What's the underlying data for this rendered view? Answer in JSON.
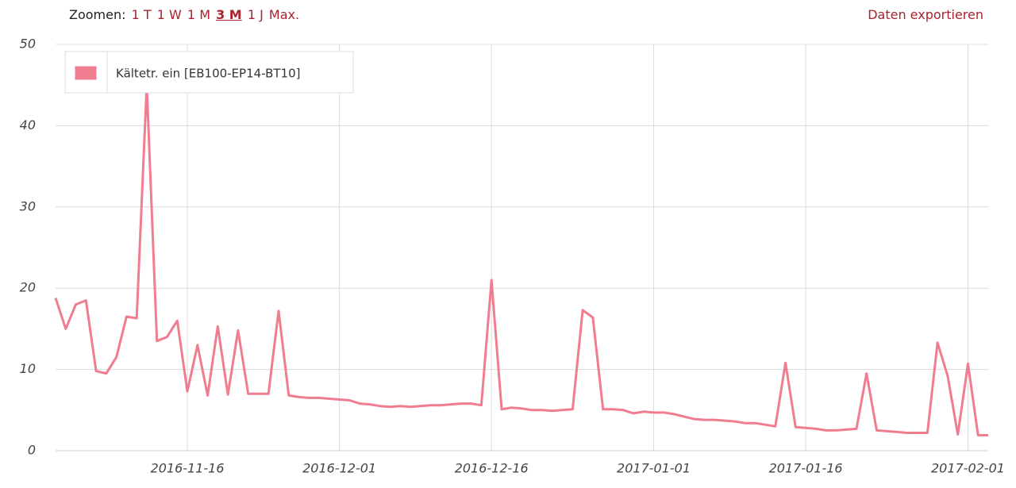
{
  "ui": {
    "zoom_label": "Zoomen:",
    "zoom_options": [
      "1 T",
      "1 W",
      "1 M",
      "3 M",
      "1 J",
      "Max."
    ],
    "active_zoom": 3,
    "export": "Daten exportieren"
  },
  "chart_data": {
    "type": "line",
    "x": [
      "2016-11-03",
      "2016-11-04",
      "2016-11-05",
      "2016-11-06",
      "2016-11-07",
      "2016-11-08",
      "2016-11-09",
      "2016-11-10",
      "2016-11-11",
      "2016-11-12",
      "2016-11-13",
      "2016-11-14",
      "2016-11-15",
      "2016-11-16",
      "2016-11-17",
      "2016-11-18",
      "2016-11-19",
      "2016-11-20",
      "2016-11-21",
      "2016-11-22",
      "2016-11-23",
      "2016-11-24",
      "2016-11-25",
      "2016-11-26",
      "2016-11-27",
      "2016-11-28",
      "2016-11-29",
      "2016-11-30",
      "2016-12-01",
      "2016-12-02",
      "2016-12-03",
      "2016-12-04",
      "2016-12-05",
      "2016-12-06",
      "2016-12-07",
      "2016-12-08",
      "2016-12-09",
      "2016-12-10",
      "2016-12-11",
      "2016-12-12",
      "2016-12-13",
      "2016-12-14",
      "2016-12-15",
      "2016-12-16",
      "2016-12-17",
      "2016-12-18",
      "2016-12-19",
      "2016-12-20",
      "2016-12-21",
      "2016-12-22",
      "2016-12-23",
      "2016-12-24",
      "2016-12-25",
      "2016-12-26",
      "2016-12-27",
      "2016-12-28",
      "2016-12-29",
      "2016-12-30",
      "2016-12-31",
      "2017-01-01",
      "2017-01-02",
      "2017-01-03",
      "2017-01-04",
      "2017-01-05",
      "2017-01-06",
      "2017-01-07",
      "2017-01-08",
      "2017-01-09",
      "2017-01-10",
      "2017-01-11",
      "2017-01-12",
      "2017-01-13",
      "2017-01-14",
      "2017-01-15",
      "2017-01-16",
      "2017-01-17",
      "2017-01-18",
      "2017-01-19",
      "2017-01-20",
      "2017-01-21",
      "2017-01-22",
      "2017-01-23",
      "2017-01-24",
      "2017-01-25",
      "2017-01-26",
      "2017-01-27",
      "2017-01-28",
      "2017-01-29",
      "2017-01-30",
      "2017-01-31",
      "2017-02-01",
      "2017-02-02",
      "2017-02-03"
    ],
    "series": [
      {
        "name": "Kältetr. ein [EB100-EP14-BT10]",
        "color": "#f07c8f",
        "values": [
          18.8,
          15,
          18,
          18.5,
          9.8,
          9.5,
          11.5,
          16.5,
          16.3,
          45,
          13.5,
          14,
          16,
          7.3,
          13,
          6.8,
          15.3,
          6.9,
          14.8,
          7,
          7,
          7,
          17.2,
          6.8,
          6.6,
          6.5,
          6.5,
          6.4,
          6.3,
          6.2,
          5.8,
          5.7,
          5.5,
          5.4,
          5.5,
          5.4,
          5.5,
          5.6,
          5.6,
          5.7,
          5.8,
          5.8,
          5.6,
          21,
          5.1,
          5.3,
          5.2,
          5,
          5,
          4.9,
          5,
          5.1,
          17.3,
          16.4,
          5.1,
          5.1,
          5,
          4.6,
          4.8,
          4.7,
          4.7,
          4.5,
          4.2,
          3.9,
          3.8,
          3.8,
          3.7,
          3.6,
          3.4,
          3.4,
          3.2,
          3,
          10.8,
          2.9,
          2.8,
          2.7,
          2.5,
          2.5,
          2.6,
          2.7,
          9.5,
          2.5,
          2.4,
          2.3,
          2.2,
          2.2,
          2.2,
          13.3,
          9.2,
          2,
          10.7,
          1.9,
          1.9
        ]
      }
    ],
    "xlim": [
      "2016-11-03",
      "2017-02-03"
    ],
    "xticks": [
      "2016-11-16",
      "2016-12-01",
      "2016-12-16",
      "2017-01-01",
      "2017-01-16",
      "2017-02-01"
    ],
    "ylim": [
      0,
      50
    ],
    "yticks": [
      0,
      10,
      20,
      30,
      40,
      50
    ],
    "grid": true,
    "legend": "top-left"
  }
}
